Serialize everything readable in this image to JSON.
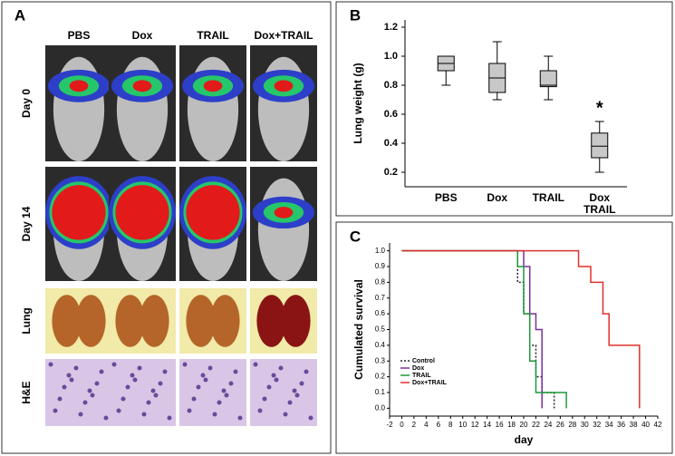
{
  "panel_a": {
    "label": "A",
    "columns": [
      "PBS",
      "Dox",
      "TRAIL",
      "Dox+TRAIL"
    ],
    "rows": [
      "Day 0",
      "Day 14",
      "Lung",
      "H&E"
    ]
  },
  "chart_data": [
    {
      "type": "box",
      "panel_label": "B",
      "y_label": "Lung weight (g)",
      "categories": [
        "PBS",
        "Dox",
        "TRAIL",
        "Dox\nTRAIL"
      ],
      "low": [
        0.8,
        0.7,
        0.7,
        0.2
      ],
      "q1": [
        0.9,
        0.75,
        0.79,
        0.3
      ],
      "median": [
        0.95,
        0.85,
        0.8,
        0.38
      ],
      "q3": [
        1.0,
        0.95,
        0.9,
        0.47
      ],
      "high": [
        1.0,
        1.1,
        1.0,
        0.55
      ],
      "color": "#c8c8c8",
      "annotations": [
        {
          "text": "*",
          "category": 3
        }
      ],
      "ylim": [
        0.1,
        1.25
      ],
      "yticks": [
        0.2,
        0.4,
        0.6,
        0.8,
        {
          "value": 1,
          "label": "1.0"
        },
        1.2
      ]
    },
    {
      "type": "step",
      "panel_label": "C",
      "x_label": "day",
      "y_label": "Cumulated survival",
      "series": [
        {
          "name": "Control",
          "color": "#222222",
          "dashed": true,
          "x": [
            0,
            19,
            19,
            20,
            20,
            21,
            21,
            22,
            22,
            23,
            23,
            25,
            25
          ],
          "values": [
            1,
            1,
            0.8,
            0.8,
            0.6,
            0.6,
            0.4,
            0.4,
            0.2,
            0.2,
            0.1,
            0.1,
            0
          ]
        },
        {
          "name": "Dox",
          "color": "#7b2f9e",
          "x": [
            0,
            20,
            20,
            21,
            21,
            22,
            22,
            23,
            23
          ],
          "values": [
            1,
            1,
            0.9,
            0.9,
            0.6,
            0.6,
            0.5,
            0.5,
            0
          ]
        },
        {
          "name": "TRAIL",
          "color": "#1f9a3a",
          "x": [
            0,
            19,
            19,
            20,
            20,
            21,
            21,
            22,
            22,
            27,
            27
          ],
          "values": [
            1,
            1,
            0.9,
            0.9,
            0.6,
            0.6,
            0.3,
            0.3,
            0.1,
            0.1,
            0
          ]
        },
        {
          "name": "Dox+TRAIL",
          "color": "#e0302a",
          "x": [
            0,
            29,
            29,
            31,
            31,
            33,
            33,
            34,
            34,
            39,
            39
          ],
          "values": [
            1,
            1,
            0.9,
            0.9,
            0.8,
            0.8,
            0.6,
            0.6,
            0.4,
            0.4,
            0
          ]
        }
      ],
      "xlim": [
        -2,
        42
      ],
      "xticks": [
        -2,
        0,
        2,
        4,
        6,
        8,
        10,
        12,
        14,
        16,
        18,
        20,
        22,
        24,
        26,
        28,
        30,
        32,
        34,
        36,
        38,
        40,
        42
      ],
      "ylim": [
        -0.05,
        1.05
      ],
      "yticks": [
        {
          "value": 0,
          "label": "0.0"
        },
        0.1,
        0.2,
        0.3,
        0.4,
        0.5,
        0.6,
        0.7,
        0.8,
        0.9,
        {
          "value": 1,
          "label": "1.0"
        }
      ],
      "legend": "lower-left"
    }
  ]
}
